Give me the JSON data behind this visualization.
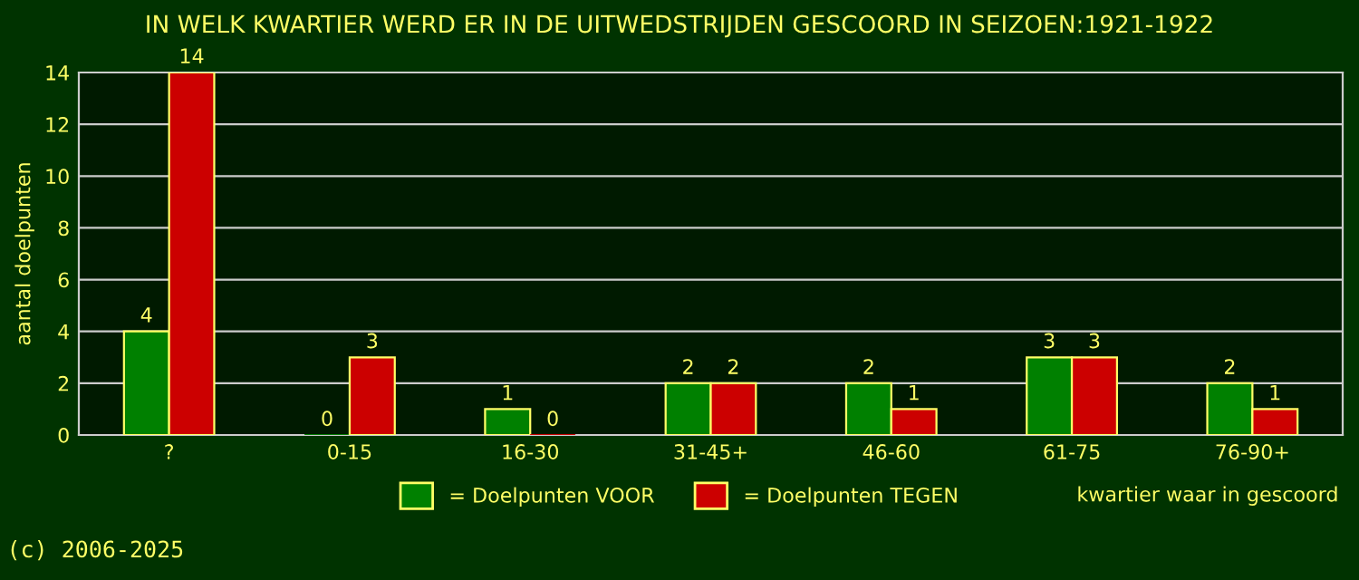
{
  "chart_data": {
    "type": "bar",
    "title": "IN WELK KWARTIER WERD ER IN DE UITWEDSTRIJDEN GESCOORD IN SEIZOEN:1921-1922",
    "xlabel": "kwartier waar in gescoord",
    "ylabel": "aantal doelpunten",
    "categories": [
      "?",
      "0-15",
      "16-30",
      "31-45+",
      "46-60",
      "61-75",
      "76-90+"
    ],
    "series": [
      {
        "name": "= Doelpunten VOOR",
        "color": "#008000",
        "values": [
          4,
          0,
          1,
          2,
          2,
          3,
          2
        ]
      },
      {
        "name": "= Doelpunten TEGEN",
        "color": "#cc0000",
        "values": [
          14,
          3,
          0,
          2,
          1,
          3,
          1
        ]
      }
    ],
    "ylim": [
      0,
      14
    ],
    "yticks": [
      0,
      2,
      4,
      6,
      8,
      10,
      12,
      14
    ],
    "grid": "y",
    "legend": "bottom",
    "data_labels": true,
    "annotations": [
      "(c) 2006-2025"
    ]
  }
}
